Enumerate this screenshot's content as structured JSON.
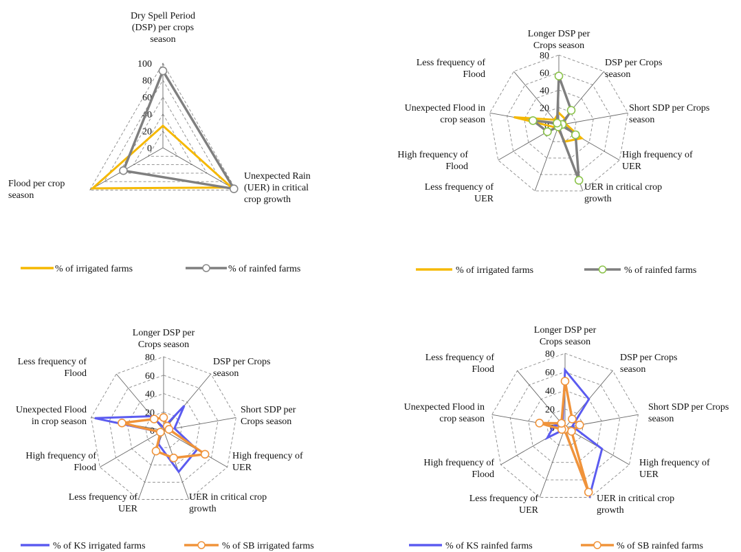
{
  "colors": {
    "irrigated": "#F5B800",
    "rainfed": "#7F7F7F",
    "ks": "#5B5BF0",
    "sb": "#F0933A",
    "grid": "#888888",
    "spoke": "#666666"
  },
  "chart_data": [
    {
      "type": "radar",
      "ticks": [
        "0",
        "20",
        "40",
        "60",
        "80",
        "100"
      ],
      "rmax": 100,
      "categories": [
        [
          "Dry Spell Period",
          "(DSP) per crops",
          "season"
        ],
        [
          "Unexpected Rain",
          "(UER) in critical",
          "crop growth"
        ],
        [
          "Flood per crop",
          "season"
        ]
      ],
      "series": [
        {
          "name": "% of irrigated farms",
          "color_key": "irrigated",
          "values": [
            26,
            94,
            96
          ],
          "marker": false
        },
        {
          "name": "% of rainfed farms",
          "color_key": "rainfed",
          "values": [
            91,
            97,
            54
          ],
          "marker": true
        }
      ],
      "legend": "bottom"
    },
    {
      "type": "radar",
      "ticks": [
        "0",
        "20",
        "40",
        "60",
        "80"
      ],
      "rmax": 80,
      "categories": [
        [
          "Longer DSP per",
          "Crops season"
        ],
        [
          "DSP per Crops",
          "season"
        ],
        [
          "Short SDP per Crops",
          "season"
        ],
        [
          "High frequency of",
          "UER"
        ],
        [
          "UER in critical crop",
          "growth"
        ],
        [
          "Less frequency of",
          "UER"
        ],
        [
          "High frequency of",
          "Flood"
        ],
        [
          "Unexpected Flood in",
          "crop season"
        ],
        [
          "Less frequency of",
          "Flood"
        ]
      ],
      "series": [
        {
          "name": "% of irrigated farms",
          "color_key": "irrigated",
          "values": [
            14,
            10,
            8,
            30,
            20,
            4,
            5,
            52,
            8
          ],
          "marker": false
        },
        {
          "name": "% of rainfed farms",
          "color_key": "rainfed",
          "values": [
            56,
            22,
            4,
            22,
            67,
            2,
            15,
            30,
            3
          ],
          "marker": true
        }
      ],
      "legend": "bottom"
    },
    {
      "type": "radar",
      "ticks": [
        "0",
        "20",
        "40",
        "60",
        "80"
      ],
      "rmax": 80,
      "categories": [
        [
          "Longer DSP per",
          "Crops season"
        ],
        [
          "DSP per Crops",
          "season"
        ],
        [
          "Short SDP per",
          "Crops season"
        ],
        [
          "High frequency of",
          "UER"
        ],
        [
          "UER in critical crop",
          "growth"
        ],
        [
          "Less frequency of",
          "UER"
        ],
        [
          "High frequency of",
          "Flood"
        ],
        [
          "Unexpected Flood",
          "in crop season"
        ],
        [
          "Less frequency of",
          "Flood"
        ]
      ],
      "series": [
        {
          "name": "% of KS irrigated farms",
          "color_key": "ks",
          "values": [
            3,
            35,
            12,
            42,
            48,
            16,
            4,
            76,
            20
          ],
          "marker": false
        },
        {
          "name": "% of SB irrigated farms",
          "color_key": "sb",
          "values": [
            14,
            6,
            6,
            52,
            32,
            24,
            4,
            46,
            16
          ],
          "marker": true
        }
      ],
      "legend": "bottom"
    },
    {
      "type": "radar",
      "ticks": [
        "0",
        "20",
        "40",
        "60",
        "80"
      ],
      "rmax": 80,
      "categories": [
        [
          "Longer DSP per",
          "Crops season"
        ],
        [
          "DSP per Crops",
          "season"
        ],
        [
          "Short SDP per Crops",
          "season"
        ],
        [
          "High frequency of",
          "UER"
        ],
        [
          "UER in critical crop",
          "growth"
        ],
        [
          "Less frequency of",
          "UER"
        ],
        [
          "High frequency of",
          "Flood"
        ],
        [
          "Unexpected Flood in",
          "crop season"
        ],
        [
          "Less frequency of",
          "Flood"
        ]
      ],
      "series": [
        {
          "name": "% of KS rainfed farms",
          "color_key": "ks",
          "values": [
            62,
            40,
            8,
            46,
            78,
            2,
            22,
            12,
            4
          ],
          "marker": false
        },
        {
          "name": "% of SB rainfed farms",
          "color_key": "sb",
          "values": [
            50,
            12,
            16,
            8,
            74,
            2,
            4,
            28,
            6
          ],
          "marker": true
        }
      ],
      "legend": "bottom"
    }
  ]
}
